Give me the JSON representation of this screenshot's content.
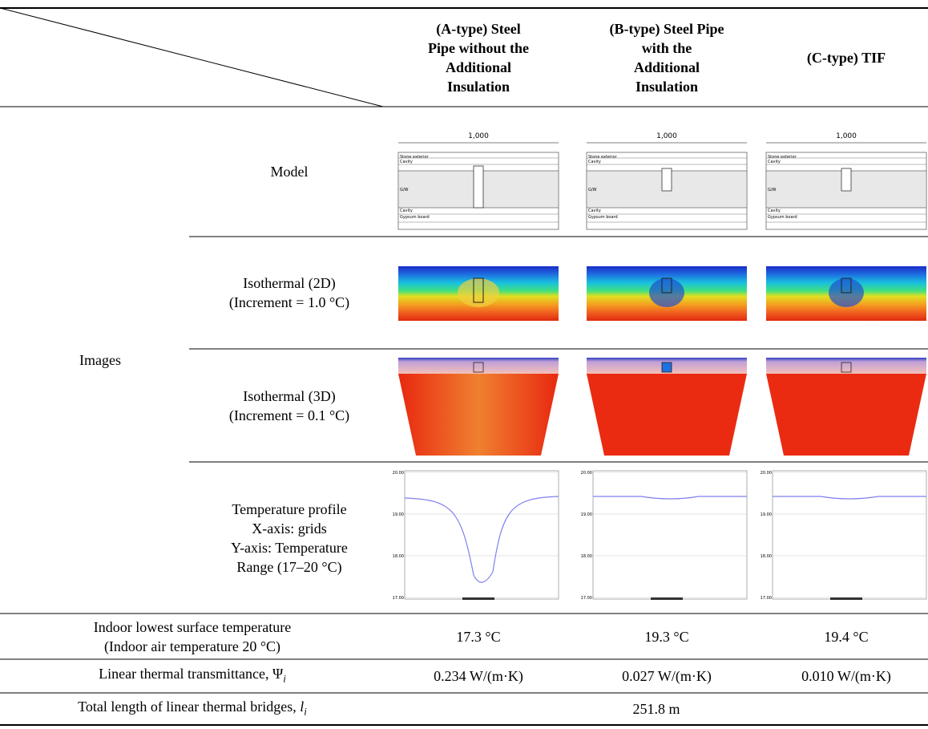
{
  "header": {
    "columns": [
      [
        "(A-type) Steel",
        "Pipe without the",
        "Additional",
        "Insulation"
      ],
      [
        "(B-type) Steel Pipe",
        "with the",
        "Additional",
        "Insulation"
      ],
      [
        "(C-type) TIF"
      ]
    ]
  },
  "images": {
    "label": "Images",
    "rows": [
      [
        "Model"
      ],
      [
        "Isothermal (2D)",
        "(Increment = 1.0 °C)"
      ],
      [
        "Isothermal (3D)",
        "(Increment = 0.1 °C)"
      ],
      [
        "Temperature profile",
        "X-axis: grids",
        "Y-axis: Temperature",
        "Range (17–20 °C)"
      ]
    ],
    "model": {
      "dimension": "1,000",
      "layers": [
        "Stone exterior",
        "Cavity",
        "G/W",
        "Cavity",
        "Gypsum board"
      ]
    },
    "profile": {
      "yticks": [
        "20.00",
        "19.00",
        "18.00",
        "17.00"
      ]
    }
  },
  "results": [
    {
      "label": [
        "Indoor lowest surface temperature",
        "(Indoor air temperature 20 °C)"
      ],
      "values": [
        "17.3 °C",
        "19.3 °C",
        "19.4 °C"
      ]
    },
    {
      "label": "Linear thermal transmittance, Ψ",
      "sub": "i",
      "values": [
        "0.234 W/(m·K)",
        "0.027 W/(m·K)",
        "0.010 W/(m·K)"
      ]
    },
    {
      "label": "Total length of linear thermal bridges, ",
      "symbol": "l",
      "sub": "i",
      "value": "251.8 m"
    }
  ]
}
